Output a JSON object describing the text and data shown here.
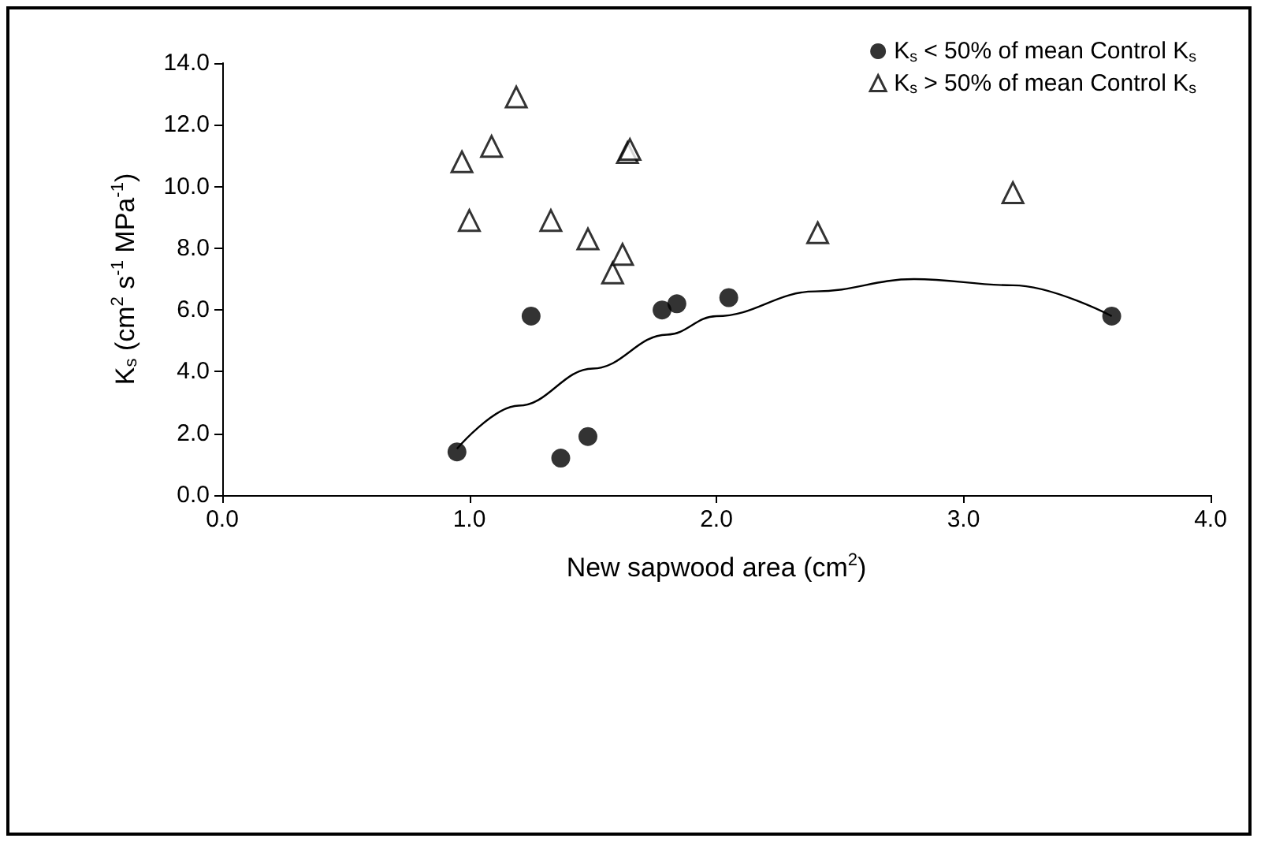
{
  "chart_data": {
    "type": "scatter",
    "xlabel": "New sapwood area (cm$^{2}$)",
    "ylabel": "K$_{s}$ (cm$^{2}$ s$^{-1}$ MPa$^{-1}$)",
    "xlim": [
      0,
      4
    ],
    "xticks": [
      {
        "value": 0,
        "label": "0.0"
      },
      {
        "value": 1,
        "label": "1.0"
      },
      {
        "value": 2,
        "label": "2.0"
      },
      {
        "value": 3,
        "label": "3.0"
      },
      {
        "value": 4,
        "label": "4.0"
      }
    ],
    "ylim": [
      0,
      14
    ],
    "yticks": [
      {
        "value": 0,
        "label": "0.0"
      },
      {
        "value": 2,
        "label": "2.0"
      },
      {
        "value": 4,
        "label": "4.0"
      },
      {
        "value": 6,
        "label": "6.0"
      },
      {
        "value": 8,
        "label": "8.0"
      },
      {
        "value": 10,
        "label": "10.0"
      },
      {
        "value": 12,
        "label": "12.0"
      },
      {
        "value": 14,
        "label": "14.0"
      }
    ],
    "grid": false,
    "legend": "top right",
    "series": [
      {
        "name": "K$_{s}$ < 50% of mean Control K$_{s}$",
        "color": "#000000",
        "marker": "circle",
        "x": [
          0.95,
          1.25,
          1.37,
          1.48,
          1.78,
          1.84,
          2.05,
          3.6
        ],
        "values": [
          1.4,
          5.8,
          1.2,
          1.9,
          6.0,
          6.2,
          6.4,
          5.8
        ]
      },
      {
        "name": "K$_{s}$ > 50% of mean Control K$_{s}$",
        "color": "#000000",
        "marker": "triangle",
        "x": [
          0.97,
          1.0,
          1.09,
          1.19,
          1.33,
          1.48,
          1.58,
          1.62,
          1.64,
          1.65,
          2.41,
          3.2
        ],
        "values": [
          10.8,
          8.9,
          11.3,
          12.9,
          8.9,
          8.3,
          7.2,
          7.8,
          11.1,
          11.2,
          8.5,
          9.8
        ]
      },
      {
        "type": "line",
        "color": "#000000",
        "marker": "none",
        "line_style": "solid",
        "x": [
          0.95,
          1.2,
          1.5,
          1.8,
          2.0,
          2.4,
          2.8,
          3.2,
          3.6
        ],
        "values": [
          1.5,
          2.9,
          4.1,
          5.2,
          5.8,
          6.6,
          7.0,
          6.8,
          5.8
        ]
      }
    ]
  }
}
